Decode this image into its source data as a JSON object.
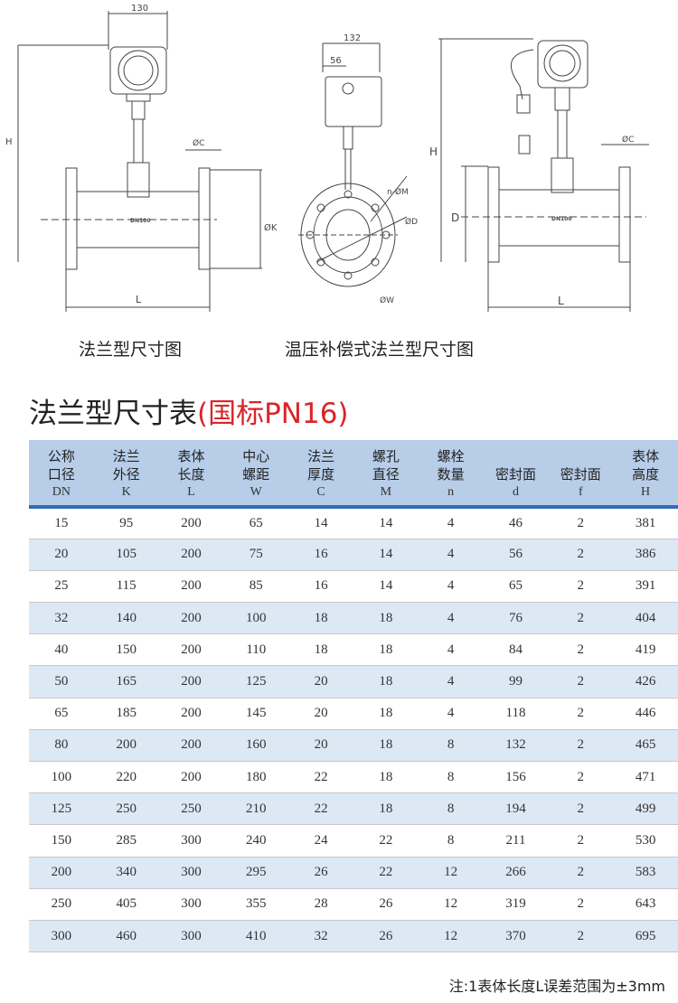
{
  "drawings": {
    "left": {
      "width_label": "130",
      "h_label": "H",
      "c_label": "ØC",
      "k_label": "ØK",
      "l_label": "L",
      "dn_label": "DN100"
    },
    "middle": {
      "width_label": "132",
      "offset_label": "56",
      "m_label": "n-ØM",
      "d_label": "ØD",
      "w_label": "ØW"
    },
    "right": {
      "h_label": "H",
      "d_label": "D",
      "c_label": "ØC",
      "l_label": "L",
      "dn_label": "DN100"
    }
  },
  "captions": {
    "left": "法兰型尺寸图",
    "right": "温压补偿式法兰型尺寸图"
  },
  "table_title": {
    "main": "法兰型尺寸表",
    "standard": "(国标PN16)"
  },
  "colors": {
    "header_bg": "#b7cde8",
    "header_border": "#2f6db5",
    "stripe": "#dde8f5",
    "accent_red": "#d8262a"
  },
  "table": {
    "headers": [
      {
        "l1": "公称",
        "l2": "口径",
        "sym": "DN"
      },
      {
        "l1": "法兰",
        "l2": "外径",
        "sym": "K"
      },
      {
        "l1": "表体",
        "l2": "长度",
        "sym": "L"
      },
      {
        "l1": "中心",
        "l2": "螺距",
        "sym": "W"
      },
      {
        "l1": "法兰",
        "l2": "厚度",
        "sym": "C"
      },
      {
        "l1": "螺孔",
        "l2": "直径",
        "sym": "M"
      },
      {
        "l1": "螺栓",
        "l2": "数量",
        "sym": "n"
      },
      {
        "l1": "",
        "l2": "密封面",
        "sym": "d"
      },
      {
        "l1": "",
        "l2": "密封面",
        "sym": "f"
      },
      {
        "l1": "表体",
        "l2": "高度",
        "sym": "H"
      }
    ],
    "rows": [
      [
        "15",
        "95",
        "200",
        "65",
        "14",
        "14",
        "4",
        "46",
        "2",
        "381"
      ],
      [
        "20",
        "105",
        "200",
        "75",
        "16",
        "14",
        "4",
        "56",
        "2",
        "386"
      ],
      [
        "25",
        "115",
        "200",
        "85",
        "16",
        "14",
        "4",
        "65",
        "2",
        "391"
      ],
      [
        "32",
        "140",
        "200",
        "100",
        "18",
        "18",
        "4",
        "76",
        "2",
        "404"
      ],
      [
        "40",
        "150",
        "200",
        "110",
        "18",
        "18",
        "4",
        "84",
        "2",
        "419"
      ],
      [
        "50",
        "165",
        "200",
        "125",
        "20",
        "18",
        "4",
        "99",
        "2",
        "426"
      ],
      [
        "65",
        "185",
        "200",
        "145",
        "20",
        "18",
        "4",
        "118",
        "2",
        "446"
      ],
      [
        "80",
        "200",
        "200",
        "160",
        "20",
        "18",
        "8",
        "132",
        "2",
        "465"
      ],
      [
        "100",
        "220",
        "200",
        "180",
        "22",
        "18",
        "8",
        "156",
        "2",
        "471"
      ],
      [
        "125",
        "250",
        "250",
        "210",
        "22",
        "18",
        "8",
        "194",
        "2",
        "499"
      ],
      [
        "150",
        "285",
        "300",
        "240",
        "24",
        "22",
        "8",
        "211",
        "2",
        "530"
      ],
      [
        "200",
        "340",
        "300",
        "295",
        "26",
        "22",
        "12",
        "266",
        "2",
        "583"
      ],
      [
        "250",
        "405",
        "300",
        "355",
        "28",
        "26",
        "12",
        "319",
        "2",
        "643"
      ],
      [
        "300",
        "460",
        "300",
        "410",
        "32",
        "26",
        "12",
        "370",
        "2",
        "695"
      ]
    ]
  },
  "note": "注:1表体长度L误差范围为±3mm"
}
